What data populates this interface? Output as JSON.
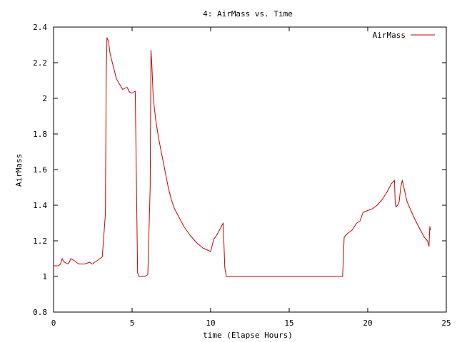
{
  "chart_data": {
    "type": "line",
    "title": "4: AirMass vs. Time",
    "xlabel": "time (Elapse Hours)",
    "ylabel": "AirMass",
    "xlim": [
      0,
      25
    ],
    "ylim": [
      0.8,
      2.4
    ],
    "xticks": [
      0,
      5,
      10,
      15,
      20,
      25
    ],
    "xtick_labels": [
      "0",
      "5",
      "10",
      "15",
      "20",
      "25"
    ],
    "yticks": [
      0.8,
      1.0,
      1.2,
      1.4,
      1.6,
      1.8,
      2.0,
      2.2,
      2.4
    ],
    "ytick_labels": [
      "0.8",
      "1",
      "1.2",
      "1.4",
      "1.6",
      "1.8",
      "2",
      "2.2",
      "2.4"
    ],
    "grid": false,
    "legend_position": "top-right",
    "series": [
      {
        "name": "AirMass",
        "color": "#cc0000",
        "x": [
          0.0,
          0.3,
          0.45,
          0.5,
          0.55,
          0.6,
          0.7,
          0.9,
          1.0,
          1.05,
          1.1,
          1.3,
          1.6,
          2.0,
          2.3,
          2.45,
          2.5,
          2.6,
          2.8,
          3.1,
          3.3,
          3.35,
          3.4,
          3.5,
          3.6,
          3.8,
          4.0,
          4.2,
          4.4,
          4.6,
          4.7,
          4.8,
          4.9,
          5.0,
          5.2,
          5.35,
          5.45,
          5.5,
          5.6,
          5.8,
          6.0,
          6.15,
          6.2,
          6.25,
          6.3,
          6.35,
          6.5,
          6.7,
          6.9,
          7.1,
          7.3,
          7.5,
          7.7,
          8.0,
          8.3,
          8.7,
          9.1,
          9.5,
          10.0,
          10.2,
          10.3,
          10.5,
          10.8,
          10.9,
          11.0,
          11.5,
          12.0,
          13.0,
          14.0,
          15.0,
          16.0,
          17.0,
          18.0,
          18.4,
          18.5,
          18.7,
          19.0,
          19.3,
          19.5,
          19.7,
          20.0,
          20.3,
          20.6,
          20.9,
          21.2,
          21.5,
          21.7,
          21.75,
          21.8,
          21.9,
          22.0,
          22.1,
          22.2,
          22.3,
          22.5,
          22.7,
          23.0,
          23.3,
          23.6,
          23.8,
          23.9,
          23.95,
          24.0
        ],
        "y": [
          1.06,
          1.06,
          1.07,
          1.09,
          1.1,
          1.09,
          1.08,
          1.07,
          1.08,
          1.09,
          1.1,
          1.09,
          1.07,
          1.07,
          1.08,
          1.07,
          1.07,
          1.08,
          1.09,
          1.11,
          1.35,
          2.1,
          2.34,
          2.32,
          2.25,
          2.18,
          2.11,
          2.08,
          2.05,
          2.06,
          2.06,
          2.04,
          2.03,
          2.03,
          2.04,
          1.02,
          1.0,
          1.0,
          1.0,
          1.0,
          1.01,
          1.5,
          2.27,
          2.2,
          2.1,
          2.0,
          1.88,
          1.77,
          1.68,
          1.59,
          1.5,
          1.43,
          1.38,
          1.33,
          1.28,
          1.23,
          1.19,
          1.16,
          1.14,
          1.21,
          1.22,
          1.25,
          1.3,
          1.05,
          1.0,
          1.0,
          1.0,
          1.0,
          1.0,
          1.0,
          1.0,
          1.0,
          1.0,
          1.0,
          1.22,
          1.24,
          1.26,
          1.3,
          1.31,
          1.36,
          1.37,
          1.38,
          1.4,
          1.43,
          1.47,
          1.52,
          1.54,
          1.41,
          1.39,
          1.4,
          1.42,
          1.5,
          1.54,
          1.5,
          1.42,
          1.38,
          1.32,
          1.27,
          1.22,
          1.2,
          1.17,
          1.28,
          1.26
        ]
      }
    ]
  }
}
